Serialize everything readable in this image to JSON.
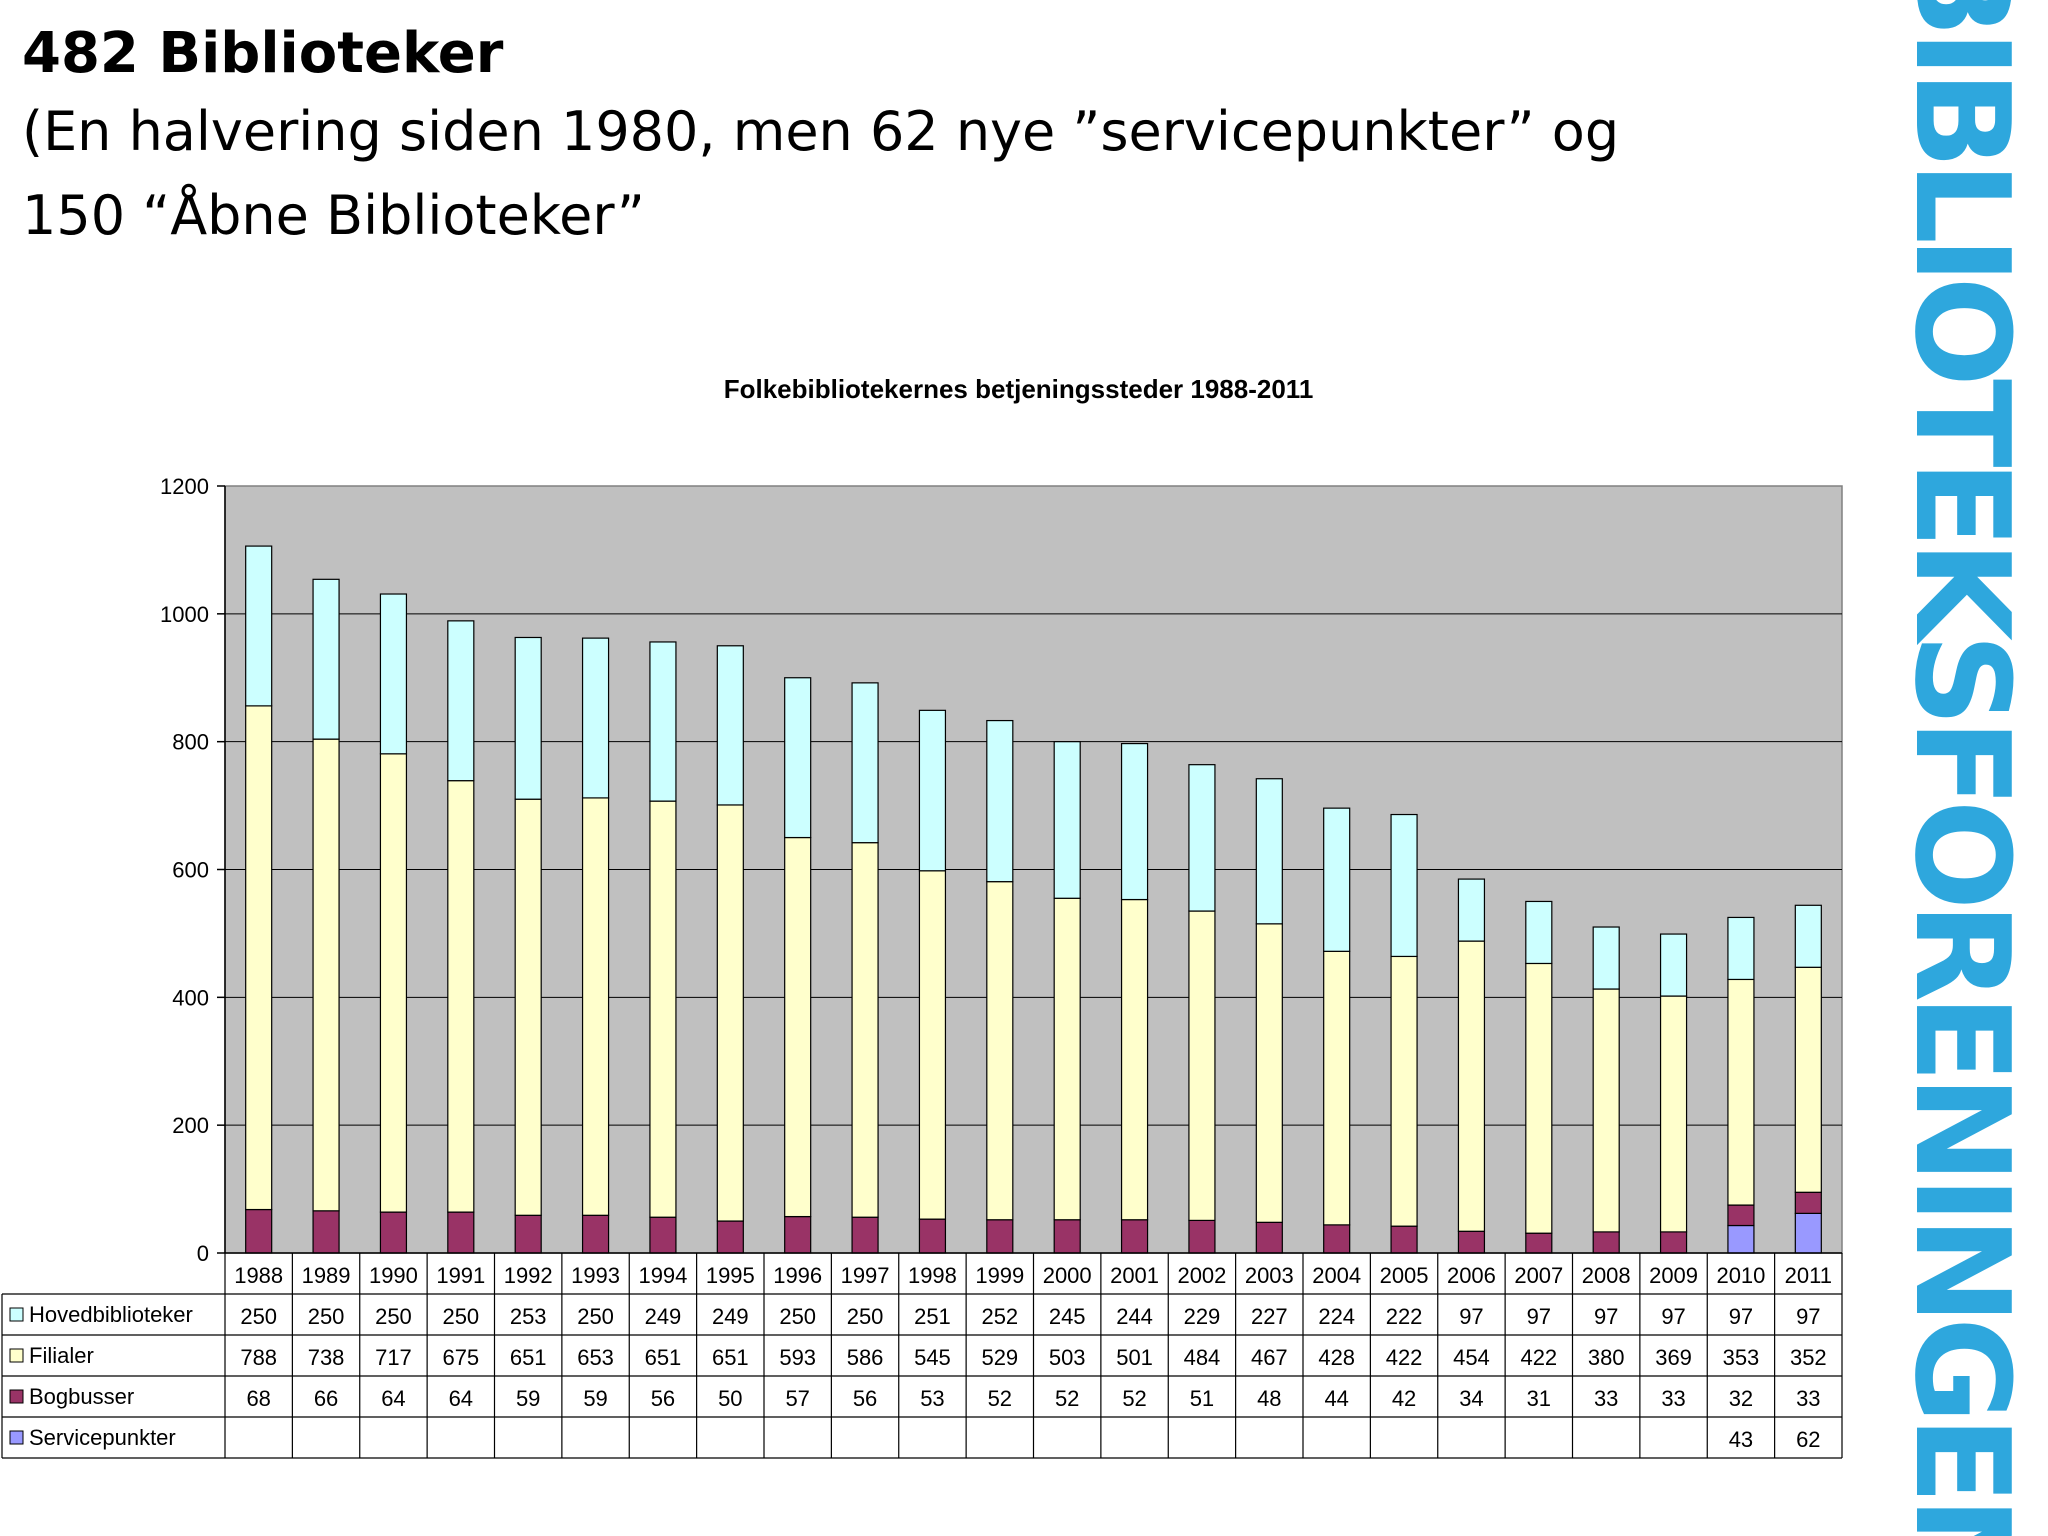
{
  "heading": {
    "title": "482 Biblioteker",
    "line1": "(En halvering siden 1980, men 62 nye ”servicepunkter” og",
    "line2": "150  “Åbne Biblioteker”"
  },
  "logo_text": "BIBLIOTEKSFORENINGEN",
  "colors": {
    "plot_bg": "#c0c0c0",
    "hoved": "#ccffff",
    "filialer": "#ffffcc",
    "bogbusser": "#993366",
    "service": "#9999ff",
    "logo": "#2ea7dd"
  },
  "chart_data": {
    "type": "bar",
    "stacked": true,
    "title": "Folkebibliotekernes betjeningssteder 1988-2011",
    "categories": [
      "1988",
      "1989",
      "1990",
      "1991",
      "1992",
      "1993",
      "1994",
      "1995",
      "1996",
      "1997",
      "1998",
      "1999",
      "2000",
      "2001",
      "2002",
      "2003",
      "2004",
      "2005",
      "2006",
      "2007",
      "2008",
      "2009",
      "2010",
      "2011"
    ],
    "series": [
      {
        "name": "Hovedbiblioteker",
        "color": "#ccffff",
        "values": [
          250,
          250,
          250,
          250,
          253,
          250,
          249,
          249,
          250,
          250,
          251,
          252,
          245,
          244,
          229,
          227,
          224,
          222,
          97,
          97,
          97,
          97,
          97,
          97
        ]
      },
      {
        "name": "Filialer",
        "color": "#ffffcc",
        "values": [
          788,
          738,
          717,
          675,
          651,
          653,
          651,
          651,
          593,
          586,
          545,
          529,
          503,
          501,
          484,
          467,
          428,
          422,
          454,
          422,
          380,
          369,
          353,
          352
        ]
      },
      {
        "name": "Bogbusser",
        "color": "#993366",
        "values": [
          68,
          66,
          64,
          64,
          59,
          59,
          56,
          50,
          57,
          56,
          53,
          52,
          52,
          52,
          51,
          48,
          44,
          42,
          34,
          31,
          33,
          33,
          32,
          33
        ]
      },
      {
        "name": "Servicepunkter",
        "color": "#9999ff",
        "values": [
          null,
          null,
          null,
          null,
          null,
          null,
          null,
          null,
          null,
          null,
          null,
          null,
          null,
          null,
          null,
          null,
          null,
          null,
          null,
          null,
          null,
          null,
          43,
          62
        ]
      }
    ],
    "stack_order": [
      "Servicepunkter",
      "Bogbusser",
      "Filialer",
      "Hovedbiblioteker"
    ],
    "yticks": [
      0,
      200,
      400,
      600,
      800,
      1000,
      1200
    ],
    "ylim": [
      0,
      1200
    ],
    "grid": true,
    "legend": "data-table-below"
  }
}
